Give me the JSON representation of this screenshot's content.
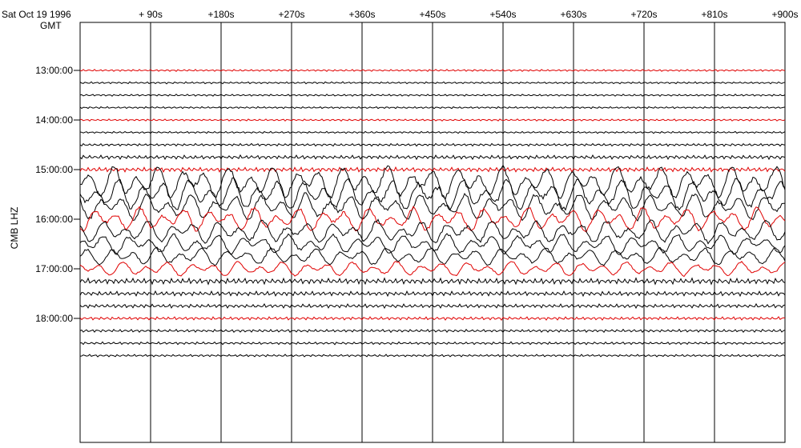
{
  "header": {
    "date": "Sat Oct 19 1996",
    "timezone": "GMT"
  },
  "chart_data": {
    "type": "line",
    "station_label": "CMB LHZ",
    "x_tick_labels": [
      "+ 90s",
      "+180s",
      "+270s",
      "+360s",
      "+450s",
      "+540s",
      "+630s",
      "+720s",
      "+810s",
      "+900s"
    ],
    "x_ticks_seconds": [
      90,
      180,
      270,
      360,
      450,
      540,
      630,
      720,
      810,
      900
    ],
    "xlim_seconds": [
      0,
      900
    ],
    "y_tick_labels": [
      "13:00:00",
      "14:00:00",
      "15:00:00",
      "16:00:00",
      "17:00:00",
      "18:00:00"
    ],
    "y_tick_minutes": [
      0,
      60,
      120,
      180,
      240,
      300
    ],
    "trace_start_times_minutes": [
      0,
      15,
      30,
      45,
      60,
      75,
      90,
      105,
      120,
      135,
      150,
      165,
      180,
      195,
      210,
      225,
      240,
      255,
      270,
      285,
      300,
      315,
      330,
      345
    ],
    "trace_amplitude_levels": [
      0.15,
      0.15,
      0.15,
      0.15,
      0.15,
      0.15,
      0.2,
      0.3,
      0.35,
      1.2,
      1.2,
      1.0,
      0.9,
      0.85,
      0.75,
      0.65,
      0.55,
      0.45,
      0.35,
      0.3,
      0.25,
      0.22,
      0.2,
      0.18
    ],
    "hour_trace_color": "#e00000",
    "trace_color": "#000000",
    "grid": true
  }
}
